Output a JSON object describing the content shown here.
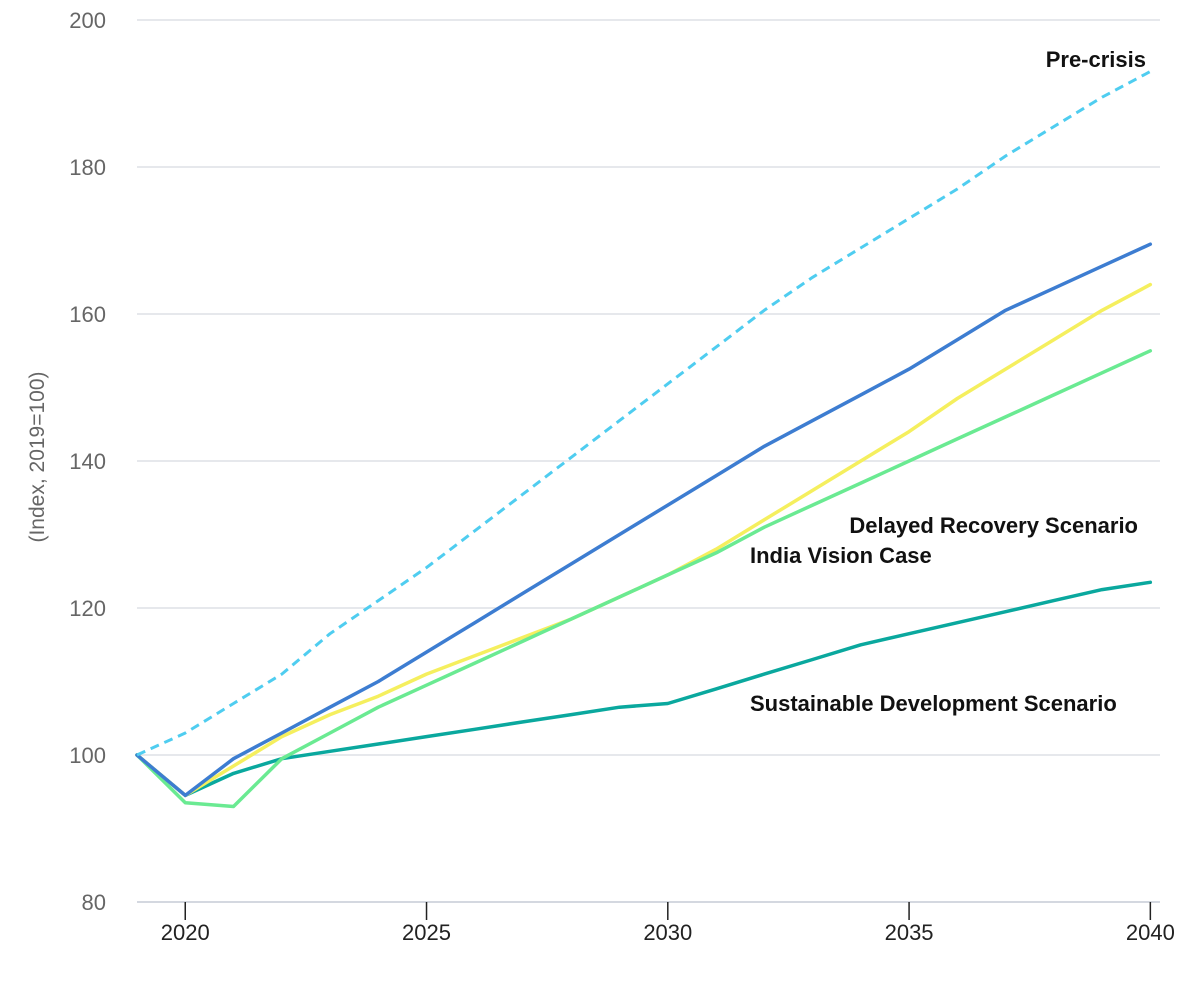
{
  "chart_data": {
    "type": "line",
    "title": "",
    "xlabel": "",
    "ylabel": "(Index, 2019=100)",
    "xlim": [
      2019,
      2040.2
    ],
    "ylim": [
      80,
      200
    ],
    "x_ticks": [
      "2020",
      "2025",
      "2030",
      "2035",
      "2040"
    ],
    "y_ticks": [
      "80",
      "100",
      "120",
      "140",
      "160",
      "180",
      "200"
    ],
    "grid": true,
    "legend": "none (direct labels)",
    "series": [
      {
        "name": "Pre-crisis",
        "color": "#4fcdf0",
        "dashed": true,
        "x": [
          2019,
          2020,
          2021,
          2022,
          2023,
          2024,
          2025,
          2026,
          2027,
          2028,
          2029,
          2030,
          2031,
          2032,
          2033,
          2034,
          2035,
          2036,
          2037,
          2038,
          2039,
          2040
        ],
        "values": [
          100,
          103,
          107,
          111,
          116.5,
          121,
          125.5,
          130.5,
          135.5,
          140.5,
          145.5,
          150.5,
          155.5,
          160.5,
          165,
          169,
          173,
          177,
          181.5,
          185.5,
          189.5,
          193
        ]
      },
      {
        "name": "Delayed Recovery Scenario",
        "color": "#3d7dd1",
        "dashed": false,
        "x": [
          2019,
          2020,
          2021,
          2022,
          2023,
          2024,
          2025,
          2026,
          2027,
          2028,
          2029,
          2030,
          2031,
          2032,
          2033,
          2034,
          2035,
          2036,
          2037,
          2038,
          2039,
          2040
        ],
        "values": [
          100,
          94.5,
          99.5,
          103,
          106.5,
          110,
          114,
          118,
          122,
          126,
          130,
          134,
          138,
          142,
          145.5,
          149,
          152.5,
          156.5,
          160.5,
          163.5,
          166.5,
          169.5
        ]
      },
      {
        "name": "India Vision Case",
        "color": "#f5ef5e",
        "dashed": false,
        "x": [
          2019,
          2020,
          2021,
          2022,
          2023,
          2024,
          2025,
          2026,
          2027,
          2028,
          2029,
          2030,
          2031,
          2032,
          2033,
          2034,
          2035,
          2036,
          2037,
          2038,
          2039,
          2040
        ],
        "values": [
          100,
          94.5,
          98.5,
          102.5,
          105.5,
          108,
          111,
          113.5,
          116,
          118.5,
          121.5,
          124.5,
          128,
          132,
          136,
          140,
          144,
          148.5,
          152.5,
          156.5,
          160.5,
          164
        ]
      },
      {
        "name": "",
        "color": "#6aea92",
        "dashed": false,
        "x": [
          2019,
          2020,
          2021,
          2022,
          2023,
          2024,
          2025,
          2026,
          2027,
          2028,
          2029,
          2030,
          2031,
          2032,
          2033,
          2034,
          2035,
          2036,
          2037,
          2038,
          2039,
          2040
        ],
        "values": [
          100,
          93.5,
          93,
          99.5,
          103,
          106.5,
          109.5,
          112.5,
          115.5,
          118.5,
          121.5,
          124.5,
          127.5,
          131,
          134,
          137,
          140,
          143,
          146,
          149,
          152,
          155
        ]
      },
      {
        "name": "Sustainable Development Scenario",
        "color": "#0aa89e",
        "dashed": false,
        "x": [
          2019,
          2020,
          2021,
          2022,
          2023,
          2024,
          2025,
          2026,
          2027,
          2028,
          2029,
          2030,
          2031,
          2032,
          2033,
          2034,
          2035,
          2036,
          2037,
          2038,
          2039,
          2040
        ],
        "values": [
          100,
          94.5,
          97.5,
          99.5,
          100.5,
          101.5,
          102.5,
          103.5,
          104.5,
          105.5,
          106.5,
          107,
          109,
          111,
          113,
          115,
          116.5,
          118,
          119.5,
          121,
          122.5,
          123.5
        ]
      }
    ]
  }
}
